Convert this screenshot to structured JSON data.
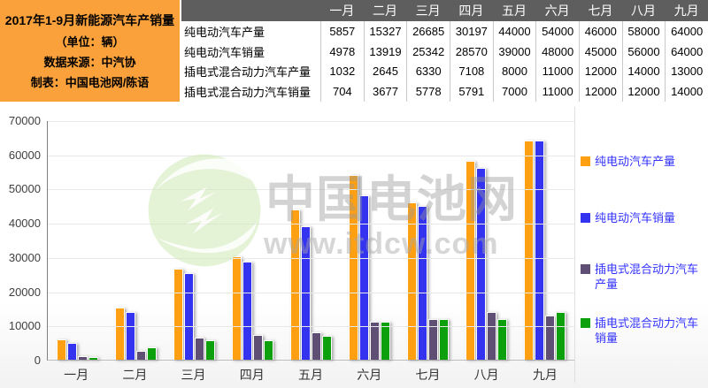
{
  "info_panel": {
    "title": "2017年1-9月新能源汽车产销量",
    "unit": "（单位：辆）",
    "source": "数据来源：中汽协",
    "credit": "制表：中国电池网/陈语"
  },
  "watermark": {
    "brand": "中国电池网",
    "url": "www.itdcw.com"
  },
  "colors": {
    "panel_bg": "#FAA13C",
    "table_header_bg": "#5E5E5E",
    "table_header_text": "#FFFFFF",
    "legend_text": "#3333FF",
    "axis_text": "#404040",
    "gridline": "#E8E8E8",
    "watermark_gray": "#D2D2D2",
    "watermark_green": "#CFE9B4"
  },
  "chart_data": {
    "type": "bar",
    "title": "2017年1-9月新能源汽车产销量（单位：辆）",
    "categories": [
      "一月",
      "二月",
      "三月",
      "四月",
      "五月",
      "六月",
      "七月",
      "八月",
      "九月"
    ],
    "series": [
      {
        "name": "纯电动汽车产量",
        "color": "#FFA013",
        "values": [
          5857,
          15327,
          26685,
          30197,
          44000,
          54000,
          46000,
          58000,
          64000
        ]
      },
      {
        "name": "纯电动汽车销量",
        "color": "#3434F0",
        "values": [
          4978,
          13919,
          25342,
          28570,
          39000,
          48000,
          45000,
          56000,
          64000
        ]
      },
      {
        "name": "插电式混合动力汽车产量",
        "color": "#5F4F75",
        "values": [
          1032,
          2645,
          6330,
          7108,
          8000,
          11000,
          12000,
          14000,
          13000
        ]
      },
      {
        "name": "插电式混合动力汽车销量",
        "color": "#0DA00D",
        "values": [
          704,
          3677,
          5778,
          5791,
          7000,
          11000,
          12000,
          12000,
          14000
        ]
      }
    ],
    "xlabel": "",
    "ylabel": "",
    "ylim": [
      0,
      70000
    ],
    "yticks": [
      0,
      10000,
      20000,
      30000,
      40000,
      50000,
      60000,
      70000
    ],
    "grid": true,
    "legend_position": "right"
  }
}
